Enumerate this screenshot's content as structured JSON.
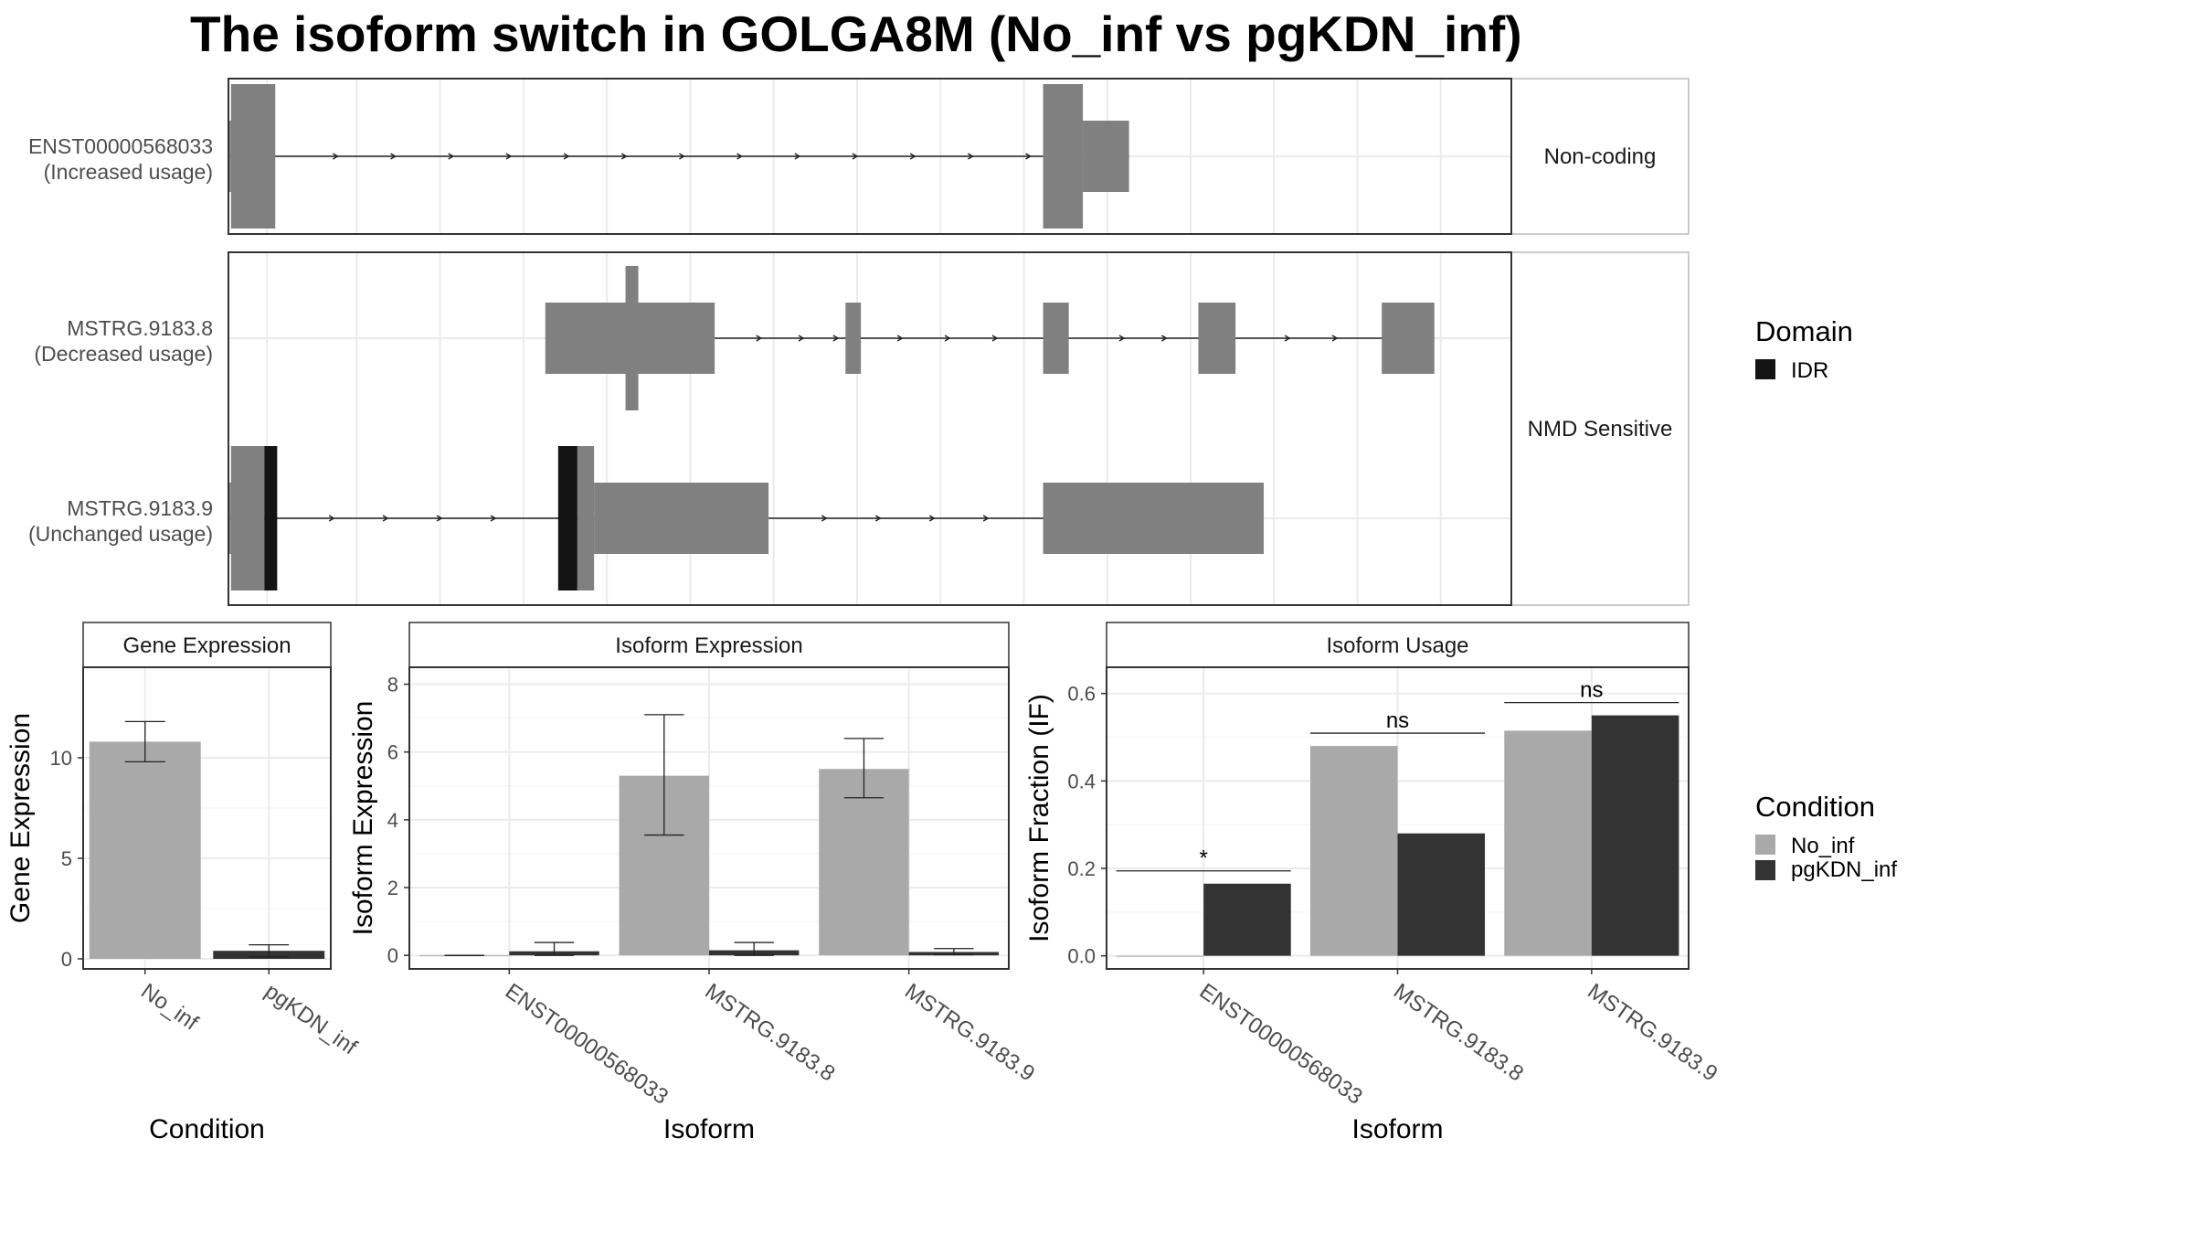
{
  "title": "The isoform switch in GOLGA8M (No_inf vs pgKDN_inf)",
  "colors": {
    "exon": "#808080",
    "idr": "#141414",
    "no_inf": "#a9a9a9",
    "pgkdn_inf": "#333333",
    "grid": "#ebebeb",
    "strip": "#ffffff",
    "panel_border": "#333333"
  },
  "transcript_panels": [
    {
      "strip_label": "Non-coding",
      "transcripts": [
        {
          "id": "ENST00000568033",
          "label": [
            "ENST00000568033",
            "(Increased usage)"
          ],
          "exons": [
            {
              "start": 0.0,
              "end": 0.2,
              "type": "utr"
            },
            {
              "start": 0.2,
              "end": 3.65,
              "type": "cds"
            },
            {
              "start": 63.5,
              "end": 66.6,
              "type": "cds"
            },
            {
              "start": 66.6,
              "end": 70.2,
              "type": "utr"
            }
          ],
          "intron_arrows": [
            8.5,
            13.0,
            17.5,
            22.0,
            26.5,
            31.0,
            35.5,
            40.0,
            44.5,
            49.0,
            53.5,
            58.0,
            62.5
          ]
        }
      ]
    },
    {
      "strip_label": "NMD Sensitive",
      "transcripts": [
        {
          "id": "MSTRG.9183.8",
          "label": [
            "MSTRG.9183.8",
            "(Decreased usage)"
          ],
          "exons": [
            {
              "start": 24.7,
              "end": 37.9,
              "type": "utr"
            },
            {
              "start": 30.95,
              "end": 31.95,
              "type": "tall"
            },
            {
              "start": 48.1,
              "end": 49.3,
              "type": "utr"
            },
            {
              "start": 63.5,
              "end": 65.5,
              "type": "utr"
            },
            {
              "start": 75.6,
              "end": 78.5,
              "type": "utr"
            },
            {
              "start": 89.9,
              "end": 94.0,
              "type": "utr"
            }
          ],
          "intron_arrows": [
            41.5,
            44.8,
            47.5,
            52.5,
            56.2,
            59.9,
            69.8,
            73.1,
            82.7,
            86.4
          ]
        },
        {
          "id": "MSTRG.9183.9",
          "label": [
            "MSTRG.9183.9",
            "(Unchanged usage)"
          ],
          "exons": [
            {
              "start": 0.0,
              "end": 0.2,
              "type": "utr"
            },
            {
              "start": 0.2,
              "end": 2.8,
              "type": "cds"
            },
            {
              "start": 2.8,
              "end": 3.8,
              "type": "cds",
              "domain": "IDR"
            },
            {
              "start": 25.7,
              "end": 27.2,
              "type": "cds",
              "domain": "IDR"
            },
            {
              "start": 27.2,
              "end": 28.5,
              "type": "cds"
            },
            {
              "start": 28.5,
              "end": 42.1,
              "type": "utr"
            },
            {
              "start": 63.5,
              "end": 80.7,
              "type": "utr"
            }
          ],
          "intron_arrows": [
            8.2,
            12.4,
            16.6,
            20.8,
            46.6,
            50.8,
            55.0,
            59.2
          ]
        }
      ]
    }
  ],
  "legend_domain": {
    "title": "Domain",
    "items": [
      {
        "label": "IDR",
        "color": "#141414"
      }
    ]
  },
  "legend_condition": {
    "title": "Condition",
    "items": [
      {
        "label": "No_inf",
        "color": "#a9a9a9"
      },
      {
        "label": "pgKDN_inf",
        "color": "#333333"
      }
    ]
  },
  "chart_data": [
    {
      "type": "bar",
      "title": "Gene Expression",
      "xlabel": "Condition",
      "ylabel": "Gene Expression",
      "categories": [
        "No_inf",
        "pgKDN_inf"
      ],
      "values": [
        10.8,
        0.4
      ],
      "error_low": [
        9.8,
        0.1
      ],
      "error_high": [
        11.8,
        0.7
      ],
      "bar_colors": [
        "#a9a9a9",
        "#333333"
      ],
      "ylim": [
        -0.5,
        14.5
      ],
      "yticks": [
        0,
        5,
        10
      ]
    },
    {
      "type": "bar",
      "title": "Isoform Expression",
      "xlabel": "Isoform",
      "ylabel": "Isoform Expression",
      "categories": [
        "ENST00000568033",
        "MSTRG.9183.8",
        "MSTRG.9183.9"
      ],
      "series": [
        {
          "name": "No_inf",
          "values": [
            0.0,
            5.3,
            5.5
          ],
          "error_low": [
            0.0,
            3.55,
            4.65
          ],
          "error_high": [
            0.0,
            7.1,
            6.4
          ]
        },
        {
          "name": "pgKDN_inf",
          "values": [
            0.12,
            0.15,
            0.1
          ],
          "error_low": [
            0.0,
            0.0,
            0.02
          ],
          "error_high": [
            0.38,
            0.38,
            0.2
          ]
        }
      ],
      "ylim": [
        -0.4,
        8.5
      ],
      "yticks": [
        0,
        2,
        4,
        6,
        8
      ]
    },
    {
      "type": "bar",
      "title": "Isoform Usage",
      "xlabel": "Isoform",
      "ylabel": "Isoform Fraction (IF)",
      "categories": [
        "ENST00000568033",
        "MSTRG.9183.8",
        "MSTRG.9183.9"
      ],
      "series": [
        {
          "name": "No_inf",
          "values": [
            0.0,
            0.48,
            0.515
          ]
        },
        {
          "name": "pgKDN_inf",
          "values": [
            0.165,
            0.28,
            0.55
          ]
        }
      ],
      "significance": [
        "*",
        "ns",
        "ns"
      ],
      "ylim": [
        -0.03,
        0.66
      ],
      "yticks": [
        0.0,
        0.2,
        0.4,
        0.6
      ]
    }
  ]
}
